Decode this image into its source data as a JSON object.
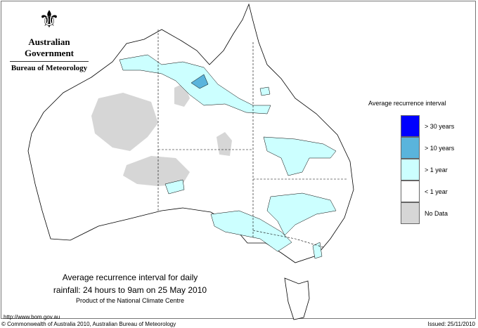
{
  "header": {
    "government": "Australian Government",
    "bureau": "Bureau of Meteorology",
    "logo_icon": "commonwealth-coat-of-arms"
  },
  "legend": {
    "title": "Average recurrence interval",
    "items": [
      {
        "label": "> 30 years",
        "color": "#0000ff"
      },
      {
        "label": "> 10 years",
        "color": "#5ab4dc"
      },
      {
        "label": "> 1 year",
        "color": "#ccffff"
      },
      {
        "label": "< 1 year",
        "color": "#ffffff"
      },
      {
        "label": "No Data",
        "color": "#d6d6d6"
      }
    ]
  },
  "caption": {
    "line1": "Average recurrence interval for daily",
    "line2": "rainfall: 24 hours to 9am on 25 May 2010",
    "line3": "Product of the National Climate Centre"
  },
  "footer": {
    "url": "http://www.bom.gov.au",
    "copyright": "© Commonwealth of Australia 2010, Australian Bureau of Meteorology",
    "issued": "Issued: 25/11/2010"
  }
}
